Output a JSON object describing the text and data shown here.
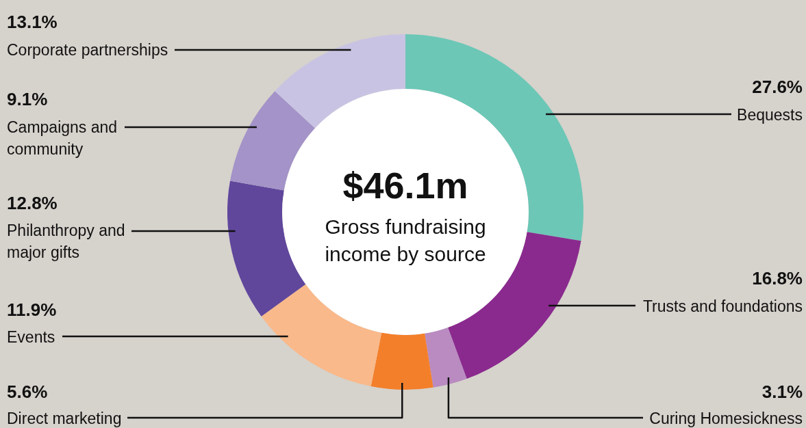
{
  "chart_data": {
    "type": "donut",
    "title": "$46.1m",
    "subtitle": "Gross fundraising income by source",
    "categories": [
      "Bequests",
      "Trusts and foundations",
      "Curing Homesickness",
      "Direct marketing",
      "Events",
      "Philanthropy and major gifts",
      "Campaigns and community",
      "Corporate partnerships"
    ],
    "values": [
      27.6,
      16.8,
      3.1,
      5.6,
      11.9,
      12.8,
      9.1,
      13.1
    ],
    "value_labels": [
      "27.6%",
      "16.8%",
      "3.1%",
      "5.6%",
      "11.9%",
      "12.8%",
      "9.1%",
      "13.1%"
    ],
    "colors": [
      "#6cc7b6",
      "#8a2a8e",
      "#b98bc1",
      "#f47f2a",
      "#f9b98a",
      "#60479c",
      "#a393c8",
      "#c9c3e3"
    ],
    "legend": false
  }
}
